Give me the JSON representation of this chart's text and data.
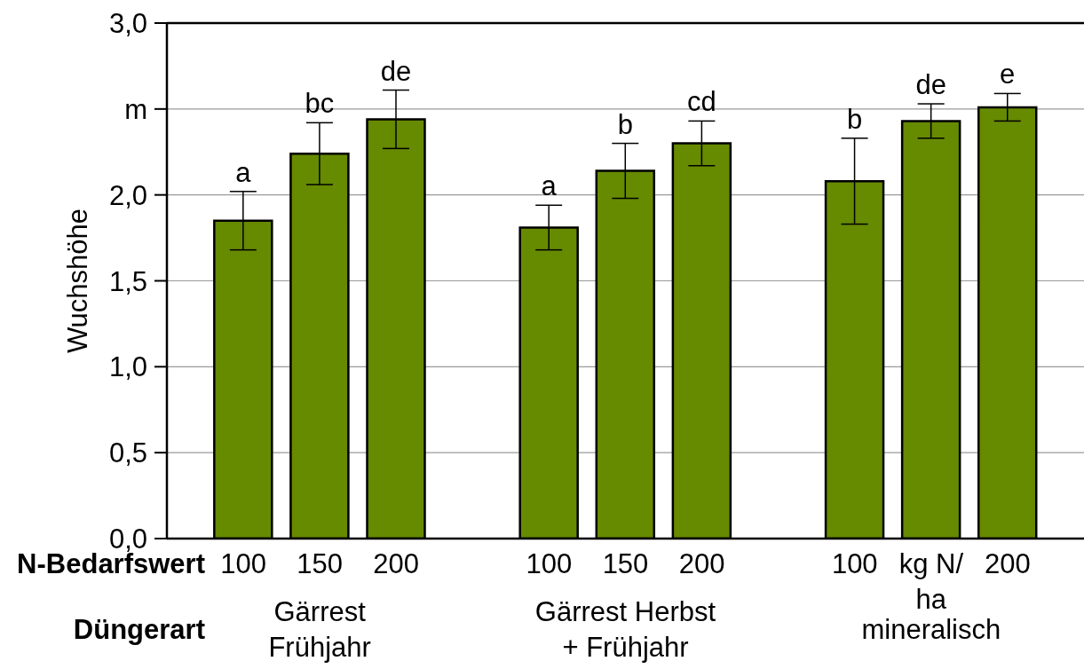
{
  "chart_data": {
    "type": "bar",
    "ylabel": "Wuchshöhe",
    "xlabel": "N-Bedarfswert",
    "categories": [
      "100",
      "150",
      "200",
      null,
      "100",
      "150",
      "200",
      null,
      "100",
      "kg N/ ha",
      "200"
    ],
    "values": [
      1.85,
      2.24,
      2.44,
      null,
      1.81,
      2.14,
      2.3,
      null,
      2.08,
      2.43,
      2.51
    ],
    "errors": [
      0.17,
      0.18,
      0.17,
      null,
      0.13,
      0.16,
      0.13,
      null,
      0.25,
      0.1,
      0.08
    ],
    "value_labels": [
      "a",
      "bc",
      "de",
      null,
      "a",
      "b",
      "cd",
      null,
      "b",
      "de",
      "e"
    ],
    "color": "#668a00",
    "ylim": [
      0,
      3
    ],
    "yticks": [
      {
        "value": 0,
        "label": "0,0"
      },
      {
        "value": 0.5,
        "label": "0,5"
      },
      {
        "value": 1,
        "label": "1,0"
      },
      {
        "value": 1.5,
        "label": "1,5"
      },
      {
        "value": 2,
        "label": "2,0"
      },
      {
        "value": 2.5,
        "label": "m"
      },
      {
        "value": 3,
        "label": "3,0"
      }
    ],
    "grid": "y",
    "annotations": [
      "Düngerart",
      "Gärrest Frühjahr",
      "Gärrest Herbst + Frühjahr",
      "mineralisch"
    ]
  }
}
